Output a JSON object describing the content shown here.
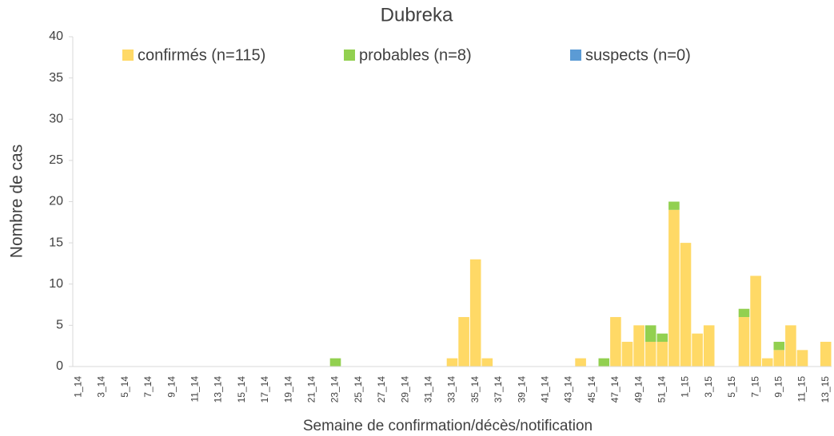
{
  "chart_data": {
    "type": "stacked_bar",
    "title": "Dubreka",
    "xlabel": "Semaine de confirmation/décès/notification",
    "ylabel": "Nombre de cas",
    "categories": [
      "1_14",
      null,
      "3_14",
      null,
      "5_14",
      null,
      "7_14",
      null,
      "9_14",
      null,
      "11_14",
      null,
      "13_14",
      null,
      "15_14",
      null,
      "17_14",
      null,
      "19_14",
      null,
      "21_14",
      null,
      "23_14",
      null,
      "25_14",
      null,
      "27_14",
      null,
      "29_14",
      null,
      "31_14",
      null,
      "33_14",
      null,
      "35_14",
      null,
      "37_14",
      null,
      "39_14",
      null,
      "41_14",
      null,
      "43_14",
      null,
      "45_14",
      null,
      "47_14",
      null,
      "49_14",
      null,
      "51_14",
      null,
      "1_15",
      null,
      "3_15",
      null,
      "5_15",
      null,
      "7_15",
      null,
      "9_15",
      null,
      "11_15",
      null,
      "13_15"
    ],
    "series": [
      {
        "name": "confirmés (n=115)",
        "color": "#ffd966",
        "values": [
          0,
          0,
          0,
          0,
          0,
          0,
          0,
          0,
          0,
          0,
          0,
          0,
          0,
          0,
          0,
          0,
          0,
          0,
          0,
          0,
          0,
          0,
          0,
          0,
          0,
          0,
          0,
          0,
          0,
          0,
          0,
          0,
          1,
          6,
          13,
          1,
          0,
          0,
          0,
          0,
          0,
          0,
          0,
          1,
          0,
          0,
          6,
          3,
          5,
          3,
          3,
          19,
          15,
          4,
          5,
          0,
          0,
          6,
          11,
          1,
          2,
          5,
          2,
          0,
          3
        ]
      },
      {
        "name": "probables (n=8)",
        "color": "#92d050",
        "values": [
          0,
          0,
          0,
          0,
          0,
          0,
          0,
          0,
          0,
          0,
          0,
          0,
          0,
          0,
          0,
          0,
          0,
          0,
          0,
          0,
          0,
          0,
          1,
          0,
          0,
          0,
          0,
          0,
          0,
          0,
          0,
          0,
          0,
          0,
          0,
          0,
          0,
          0,
          0,
          0,
          0,
          0,
          0,
          0,
          0,
          1,
          0,
          0,
          0,
          2,
          1,
          1,
          0,
          0,
          0,
          0,
          0,
          1,
          0,
          0,
          1,
          0,
          0,
          0,
          0
        ]
      },
      {
        "name": "suspects (n=0)",
        "color": "#5b9bd5",
        "values": [
          0,
          0,
          0,
          0,
          0,
          0,
          0,
          0,
          0,
          0,
          0,
          0,
          0,
          0,
          0,
          0,
          0,
          0,
          0,
          0,
          0,
          0,
          0,
          0,
          0,
          0,
          0,
          0,
          0,
          0,
          0,
          0,
          0,
          0,
          0,
          0,
          0,
          0,
          0,
          0,
          0,
          0,
          0,
          0,
          0,
          0,
          0,
          0,
          0,
          0,
          0,
          0,
          0,
          0,
          0,
          0,
          0,
          0,
          0,
          0,
          0,
          0,
          0,
          0,
          0
        ]
      }
    ],
    "ylim": [
      0,
      40
    ],
    "yticks": [
      0,
      5,
      10,
      15,
      20,
      25,
      30,
      35,
      40
    ],
    "legend": "top"
  }
}
